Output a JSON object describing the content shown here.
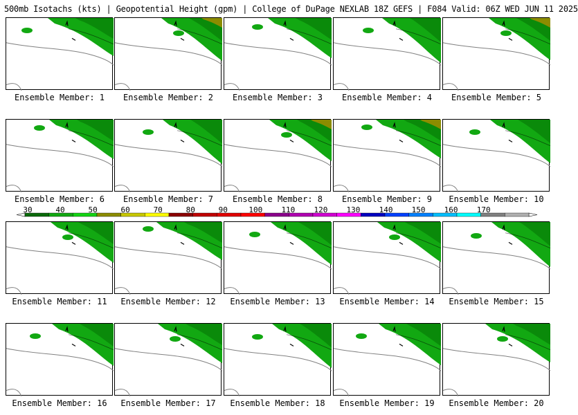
{
  "header": {
    "title": "500mb Isotachs (kts) | Geopotential Height (gpm) | College of DuPage NEXLAB   18Z GEFS | F084 Valid: 06Z WED JUN 11 2025"
  },
  "colors": {
    "background": "#ffffff",
    "coastline": "#808080",
    "height_contour": "#000000",
    "wind_light": "#12a812",
    "wind_mid": "#0a8a0a",
    "wind_strong": "#8c8c00"
  },
  "members": [
    {
      "label": "Ensemble Member: 1"
    },
    {
      "label": "Ensemble Member: 2"
    },
    {
      "label": "Ensemble Member: 3"
    },
    {
      "label": "Ensemble Member: 4"
    },
    {
      "label": "Ensemble Member: 5"
    },
    {
      "label": "Ensemble Member: 6"
    },
    {
      "label": "Ensemble Member: 7"
    },
    {
      "label": "Ensemble Member: 8"
    },
    {
      "label": "Ensemble Member: 9"
    },
    {
      "label": "Ensemble Member: 10"
    },
    {
      "label": "Ensemble Member: 11"
    },
    {
      "label": "Ensemble Member: 12"
    },
    {
      "label": "Ensemble Member: 13"
    },
    {
      "label": "Ensemble Member: 14"
    },
    {
      "label": "Ensemble Member: 15"
    },
    {
      "label": "Ensemble Member: 16"
    },
    {
      "label": "Ensemble Member: 17"
    },
    {
      "label": "Ensemble Member: 18"
    },
    {
      "label": "Ensemble Member: 19"
    },
    {
      "label": "Ensemble Member: 20"
    }
  ],
  "legend": {
    "units": "kts",
    "ticks": [
      "30",
      "40",
      "50",
      "60",
      "70",
      "80",
      "90",
      "100",
      "110",
      "120",
      "130",
      "140",
      "150",
      "160",
      "170"
    ],
    "colors": [
      "#0b6a0b",
      "#12a812",
      "#14d414",
      "#8c8c00",
      "#c8c800",
      "#ffff00",
      "#8b0000",
      "#c00000",
      "#e00000",
      "#ff0000",
      "#8b008b",
      "#b000b0",
      "#d000d0",
      "#ff00ff",
      "#0000c0",
      "#0040ff",
      "#0080ff",
      "#00bfff",
      "#00ffff",
      "#808080",
      "#b0b0b0"
    ]
  }
}
